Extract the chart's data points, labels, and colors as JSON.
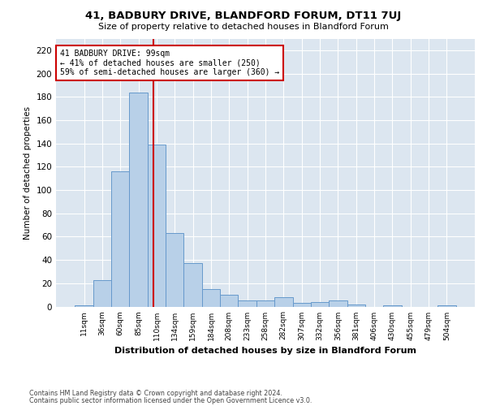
{
  "title1": "41, BADBURY DRIVE, BLANDFORD FORUM, DT11 7UJ",
  "title2": "Size of property relative to detached houses in Blandford Forum",
  "xlabel": "Distribution of detached houses by size in Blandford Forum",
  "ylabel": "Number of detached properties",
  "footnote1": "Contains HM Land Registry data © Crown copyright and database right 2024.",
  "footnote2": "Contains public sector information licensed under the Open Government Licence v3.0.",
  "bar_labels": [
    "11sqm",
    "36sqm",
    "60sqm",
    "85sqm",
    "110sqm",
    "134sqm",
    "159sqm",
    "184sqm",
    "208sqm",
    "233sqm",
    "258sqm",
    "282sqm",
    "307sqm",
    "332sqm",
    "356sqm",
    "381sqm",
    "406sqm",
    "430sqm",
    "455sqm",
    "479sqm",
    "504sqm"
  ],
  "bar_heights": [
    1,
    23,
    116,
    184,
    139,
    63,
    37,
    15,
    10,
    5,
    5,
    8,
    3,
    4,
    5,
    2,
    0,
    1,
    0,
    0,
    1
  ],
  "bar_color": "#b8d0e8",
  "bar_edge_color": "#6699cc",
  "bg_color": "#dce6f0",
  "grid_color": "#ffffff",
  "vline_x": 3.82,
  "vline_color": "#cc0000",
  "annotation_text": "41 BADBURY DRIVE: 99sqm\n← 41% of detached houses are smaller (250)\n59% of semi-detached houses are larger (360) →",
  "annotation_box_color": "#ffffff",
  "annotation_box_edge": "#cc0000",
  "ylim": [
    0,
    230
  ],
  "yticks": [
    0,
    20,
    40,
    60,
    80,
    100,
    120,
    140,
    160,
    180,
    200,
    220
  ],
  "fig_bg_color": "#ffffff"
}
